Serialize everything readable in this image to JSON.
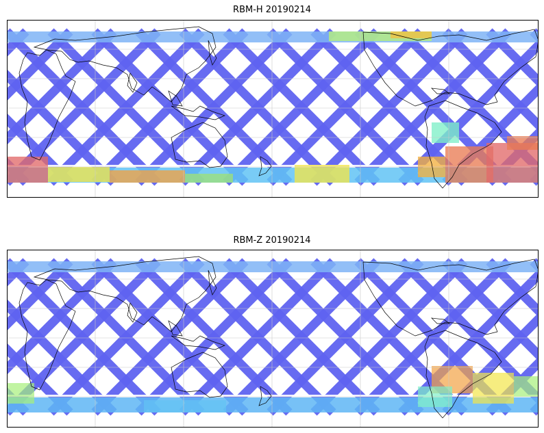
{
  "panels": [
    {
      "title": "RBM-H 20190214",
      "variable": "RBM-H",
      "date": "20190214"
    },
    {
      "title": "RBM-Z 20190214",
      "variable": "RBM-Z",
      "date": "20190214"
    }
  ],
  "colormap": {
    "name": "jet",
    "low": "#5f63f0",
    "mid": "#5fd6f2",
    "high": "#e26a6a"
  },
  "colors": {
    "coastline": "#000000",
    "gridline": "#c8c8c8",
    "frame": "#000000"
  }
}
